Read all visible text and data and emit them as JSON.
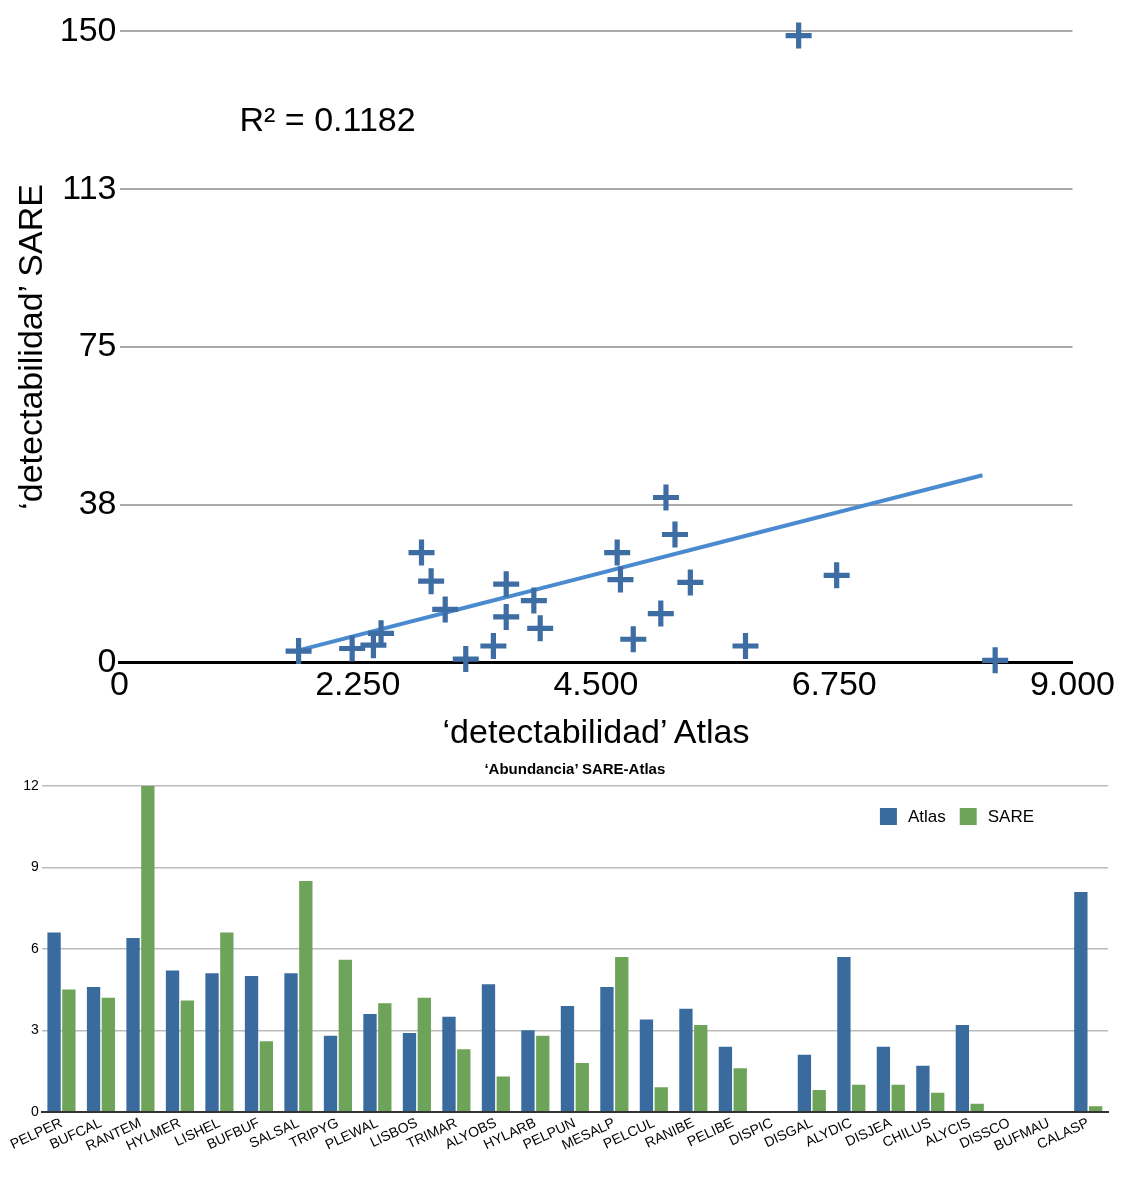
{
  "chart_data": [
    {
      "type": "scatter",
      "xlabel": "‘detectabilidad’ Atlas",
      "ylabel": "‘detectabilidad’ SARE",
      "annotations": [
        "R² = 0.1182"
      ],
      "xlim": [
        0,
        9
      ],
      "xticks": [
        0,
        {
          "value": 2.25,
          "label": "2.250"
        },
        {
          "value": 4.5,
          "label": "4.500"
        },
        {
          "value": 6.75,
          "label": "6.750"
        },
        {
          "value": 9,
          "label": "9.000"
        }
      ],
      "ylim": [
        0,
        150
      ],
      "yticks": [
        0,
        {
          "value": 37.5,
          "label": "38"
        },
        75,
        {
          "value": 112.5,
          "label": "113"
        },
        150
      ],
      "grid": "y",
      "series": [
        {
          "color": "#3d6da3",
          "marker": "cross",
          "x": [
            1.691,
            2.197,
            2.398,
            2.47,
            2.852,
            2.943,
            3.076,
            3.27,
            3.531,
            3.652,
            3.652,
            3.913,
            3.973,
            4.7,
            4.731,
            4.852,
            5.112,
            5.161,
            5.246,
            5.391,
            5.912,
            6.773,
            8.27,
            6.414
          ],
          "values": [
            2.7,
            3.3,
            4.1,
            6.9,
            26.1,
            19.3,
            12.6,
            0.8,
            3.9,
            18.6,
            10.8,
            14.7,
            8.1,
            26.1,
            19.7,
            5.5,
            11.6,
            39.2,
            30.4,
            19.0,
            3.9,
            20.7,
            0.5,
            149
          ]
        },
        {
          "type": "line",
          "marker": "none",
          "color": "#4a8bd0",
          "x": [
            1.68,
            8.15
          ],
          "values": [
            2.8,
            44.5
          ]
        }
      ]
    },
    {
      "type": "bar",
      "title": "‘Abundancia’ SARE-Atlas",
      "categories": [
        "PELPER",
        "BUFCAL",
        "RANTEM",
        "HYLMER",
        "LISHEL",
        "BUFBUF",
        "SALSAL",
        "TRIPYG",
        "PLEWAL",
        "LISBOS",
        "TRIMAR",
        "ALYOBS",
        "HYLARB",
        "PELPUN",
        "MESALP",
        "PELCUL",
        "RANIBE",
        "PELIBE",
        "DISPIC",
        "DISGAL",
        "ALYDIC",
        "DISJEA",
        "CHILUS",
        "ALYCIS",
        "DISSCO",
        "BUFMAU",
        "CALASP"
      ],
      "ylim": [
        0,
        12
      ],
      "yticks": [
        0,
        3,
        6,
        9,
        12
      ],
      "grid": "y",
      "legend": "top right",
      "series": [
        {
          "name": "Atlas",
          "color": "#3a6b9e",
          "values": [
            6.6,
            4.6,
            6.4,
            5.2,
            5.1,
            5.0,
            5.1,
            2.8,
            3.6,
            2.9,
            3.5,
            4.7,
            3.0,
            3.9,
            4.6,
            3.4,
            3.8,
            2.4,
            null,
            2.1,
            5.7,
            2.4,
            1.7,
            3.2,
            null,
            null,
            8.1
          ]
        },
        {
          "name": "SARE",
          "color": "#6ea45a",
          "values": [
            4.5,
            4.2,
            12,
            4.1,
            6.6,
            2.6,
            8.5,
            5.6,
            4.0,
            4.2,
            2.3,
            1.3,
            2.8,
            1.8,
            5.7,
            0.9,
            3.2,
            1.6,
            null,
            0.8,
            1.0,
            1.0,
            0.7,
            0.3,
            null,
            null,
            0.2
          ]
        }
      ]
    }
  ]
}
